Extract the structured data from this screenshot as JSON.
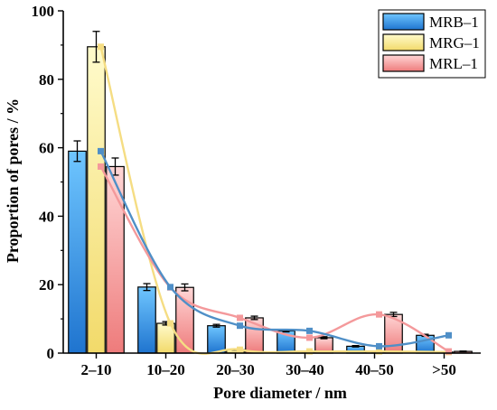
{
  "chart_data": {
    "type": "bar",
    "title": "",
    "xlabel": "Pore diameter / nm",
    "ylabel": "Proportion of pores / %",
    "ylim": [
      0,
      100
    ],
    "yticks": [
      0,
      20,
      40,
      60,
      80,
      100
    ],
    "categories": [
      "2–10",
      "10–20",
      "20–30",
      "30–40",
      "40–50",
      ">50"
    ],
    "legend_position": "top-right",
    "grid": false,
    "series": [
      {
        "name": "MRB–1",
        "values": [
          59.0,
          19.3,
          8.0,
          6.5,
          2.0,
          5.2
        ],
        "errors": [
          3.0,
          1.0,
          0.4,
          0.3,
          0.2,
          0.3
        ],
        "fill_top": "#6fc6ff",
        "fill_bottom": "#1f74cf",
        "line_color": "#4f8fc7"
      },
      {
        "name": "MRG–1",
        "values": [
          89.5,
          8.7,
          1.0,
          0.5,
          0.5,
          0.3
        ],
        "errors": [
          4.5,
          0.5,
          0.1,
          0.1,
          0.1,
          0.1
        ],
        "fill_top": "#fffbcc",
        "fill_bottom": "#f2da6a",
        "line_color": "#f5dd83"
      },
      {
        "name": "MRL–1",
        "values": [
          54.5,
          19.2,
          10.3,
          4.5,
          11.3,
          0.5
        ],
        "errors": [
          2.5,
          1.0,
          0.5,
          0.3,
          0.6,
          0.1
        ],
        "fill_top": "#ffd6d6",
        "fill_bottom": "#ee7b7b",
        "line_color": "#f4999b"
      }
    ]
  }
}
